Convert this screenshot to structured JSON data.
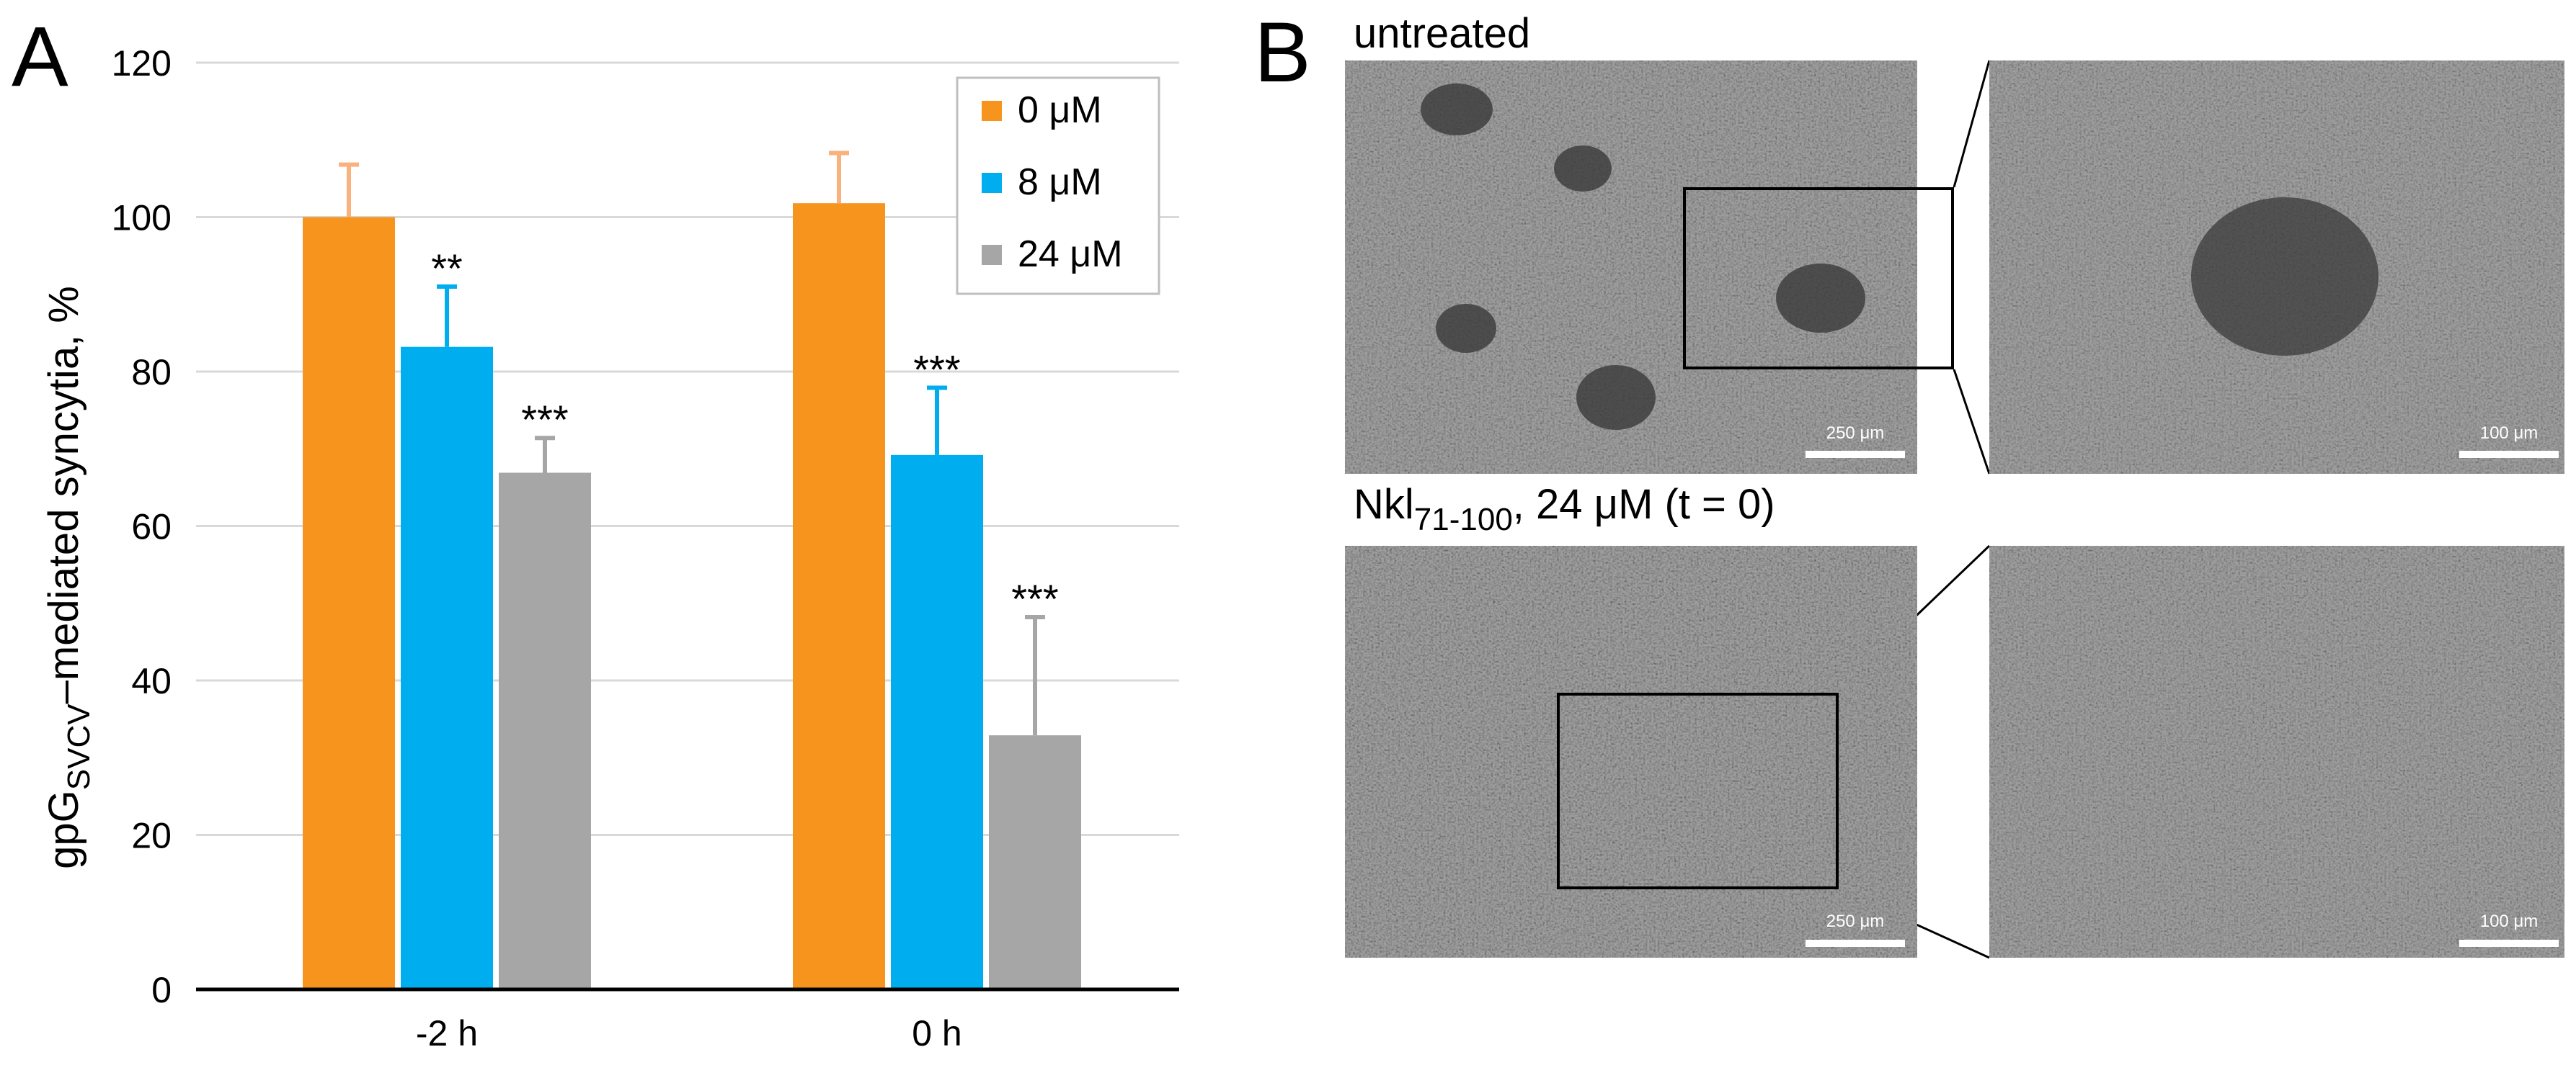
{
  "panel_a": {
    "letter": "A"
  },
  "panel_b": {
    "letter": "B",
    "untreated_label": "untreated",
    "treated_label_main": "Nkl",
    "treated_label_sub": "71-100",
    "treated_label_rest": ", 24 μM (t = 0)",
    "scale_large": "250 μm",
    "scale_small": "100 μm"
  },
  "chart_data": {
    "type": "bar",
    "ylabel_main": "gpG",
    "ylabel_sub": "SVCV",
    "ylabel_rest": "–mediated syncytia, %",
    "ylim": [
      0,
      120
    ],
    "yticks": [
      0,
      20,
      40,
      60,
      80,
      100,
      120
    ],
    "grid": true,
    "categories": [
      "-2 h",
      "0 h"
    ],
    "legend_position": "top-right",
    "series": [
      {
        "name": "0 μM",
        "color": "#F7941D",
        "error_color": "#F9B27D",
        "values": [
          100,
          101.8
        ],
        "errors": [
          6.8,
          6.5
        ],
        "significance": [
          "",
          ""
        ]
      },
      {
        "name": "8 μM",
        "color": "#00AEEF",
        "error_color": "#00AEEF",
        "values": [
          83.2,
          69.2
        ],
        "errors": [
          7.8,
          8.7
        ],
        "significance": [
          "**",
          "***"
        ]
      },
      {
        "name": "24 μM",
        "color": "#A6A6A6",
        "error_color": "#A6A6A6",
        "values": [
          66.9,
          32.9
        ],
        "errors": [
          4.5,
          15.3
        ],
        "significance": [
          "***",
          "***"
        ]
      }
    ]
  }
}
